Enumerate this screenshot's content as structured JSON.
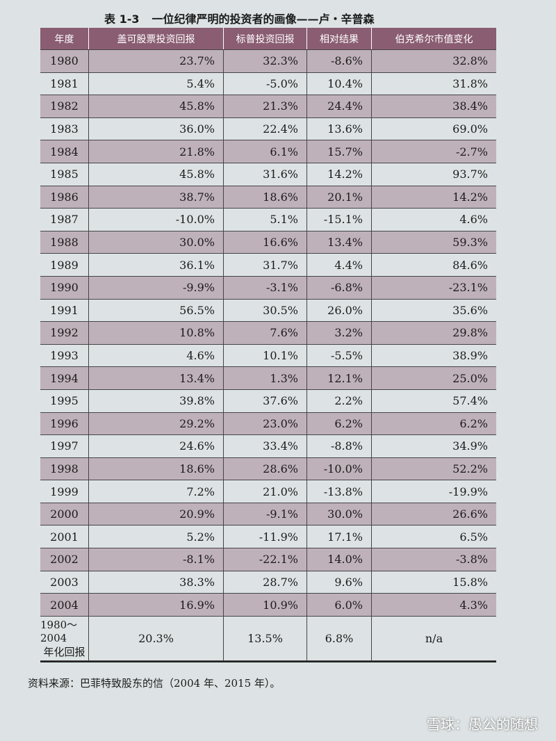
{
  "caption": {
    "number": "表 1-3",
    "title": "一位纪律严明的投资者的画像——卢・辛普森"
  },
  "table": {
    "header": [
      "年度",
      "盖可股票投资回报",
      "标普投资回报",
      "相对结果",
      "伯克希尔市值变化"
    ],
    "rows": [
      [
        "1980",
        "23.7%",
        "32.3%",
        "-8.6%",
        "32.8%"
      ],
      [
        "1981",
        "5.4%",
        "-5.0%",
        "10.4%",
        "31.8%"
      ],
      [
        "1982",
        "45.8%",
        "21.3%",
        "24.4%",
        "38.4%"
      ],
      [
        "1983",
        "36.0%",
        "22.4%",
        "13.6%",
        "69.0%"
      ],
      [
        "1984",
        "21.8%",
        "6.1%",
        "15.7%",
        "-2.7%"
      ],
      [
        "1985",
        "45.8%",
        "31.6%",
        "14.2%",
        "93.7%"
      ],
      [
        "1986",
        "38.7%",
        "18.6%",
        "20.1%",
        "14.2%"
      ],
      [
        "1987",
        "-10.0%",
        "5.1%",
        "-15.1%",
        "4.6%"
      ],
      [
        "1988",
        "30.0%",
        "16.6%",
        "13.4%",
        "59.3%"
      ],
      [
        "1989",
        "36.1%",
        "31.7%",
        "4.4%",
        "84.6%"
      ],
      [
        "1990",
        "-9.9%",
        "-3.1%",
        "-6.8%",
        "-23.1%"
      ],
      [
        "1991",
        "56.5%",
        "30.5%",
        "26.0%",
        "35.6%"
      ],
      [
        "1992",
        "10.8%",
        "7.6%",
        "3.2%",
        "29.8%"
      ],
      [
        "1993",
        "4.6%",
        "10.1%",
        "-5.5%",
        "38.9%"
      ],
      [
        "1994",
        "13.4%",
        "1.3%",
        "12.1%",
        "25.0%"
      ],
      [
        "1995",
        "39.8%",
        "37.6%",
        "2.2%",
        "57.4%"
      ],
      [
        "1996",
        "29.2%",
        "23.0%",
        "6.2%",
        "6.2%"
      ],
      [
        "1997",
        "24.6%",
        "33.4%",
        "-8.8%",
        "34.9%"
      ],
      [
        "1998",
        "18.6%",
        "28.6%",
        "-10.0%",
        "52.2%"
      ],
      [
        "1999",
        "7.2%",
        "21.0%",
        "-13.8%",
        "-19.9%"
      ],
      [
        "2000",
        "20.9%",
        "-9.1%",
        "30.0%",
        "26.6%"
      ],
      [
        "2001",
        "5.2%",
        "-11.9%",
        "17.1%",
        "6.5%"
      ],
      [
        "2002",
        "-8.1%",
        "-22.1%",
        "14.0%",
        "-3.8%"
      ],
      [
        "2003",
        "38.3%",
        "28.7%",
        "9.6%",
        "15.8%"
      ],
      [
        "2004",
        "16.9%",
        "10.9%",
        "6.0%",
        "4.3%"
      ]
    ],
    "summary": {
      "label": [
        "1980～2004",
        "年化回报"
      ],
      "values": [
        "20.3%",
        "13.5%",
        "6.8%",
        "n/a"
      ]
    }
  },
  "source": "资料来源：巴菲特致股东的信（2004 年、2015 年）。",
  "watermark": "雪球：愚公的随想"
}
